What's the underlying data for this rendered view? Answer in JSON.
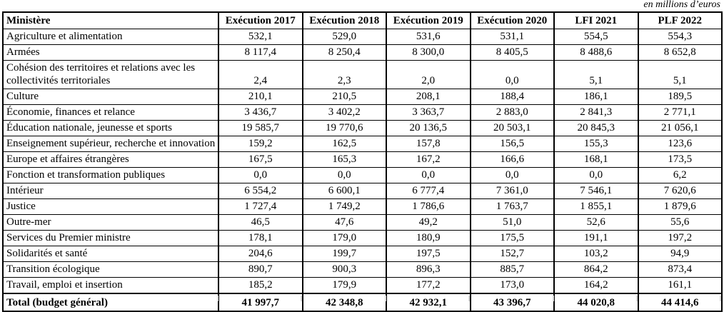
{
  "note": "en millions d’euros",
  "colors": {
    "table_border": "#000000",
    "gridline_artifact": "#d9d9d9",
    "background": "#ffffff",
    "text": "#000000"
  },
  "table": {
    "columns": [
      "Ministère",
      "Exécution 2017",
      "Exécution 2018",
      "Exécution 2019",
      "Exécution 2020",
      "LFI 2021",
      "PLF 2022"
    ],
    "rows": [
      {
        "label": "Agriculture et alimentation",
        "values": [
          "532,1",
          "529,0",
          "531,6",
          "531,1",
          "554,5",
          "554,3"
        ]
      },
      {
        "label": "Armées",
        "values": [
          "8 117,4",
          "8 250,4",
          "8 300,0",
          "8 405,5",
          "8 488,6",
          "8 652,8"
        ]
      },
      {
        "label": "Cohésion des territoires et relations avec les collectivités territoriales",
        "values": [
          "2,4",
          "2,3",
          "2,0",
          "0,0",
          "5,1",
          "5,1"
        ]
      },
      {
        "label": "Culture",
        "values": [
          "210,1",
          "210,5",
          "208,1",
          "188,4",
          "186,1",
          "189,5"
        ]
      },
      {
        "label": "Économie, finances et relance",
        "values": [
          "3 436,7",
          "3 402,2",
          "3 363,7",
          "2 883,0",
          "2 841,3",
          "2 771,1"
        ]
      },
      {
        "label": "Éducation nationale, jeunesse et sports",
        "values": [
          "19 585,7",
          "19 770,6",
          "20 136,5",
          "20 503,1",
          "20 845,3",
          "21 056,1"
        ]
      },
      {
        "label": "Enseignement supérieur, recherche et innovation",
        "values": [
          "159,2",
          "162,5",
          "157,8",
          "156,5",
          "155,3",
          "123,6"
        ]
      },
      {
        "label": "Europe et affaires étrangères",
        "values": [
          "167,5",
          "165,3",
          "167,2",
          "166,6",
          "168,1",
          "173,5"
        ]
      },
      {
        "label": "Fonction et transformation publiques",
        "values": [
          "0,0",
          "0,0",
          "0,0",
          "0,0",
          "0,0",
          "6,2"
        ]
      },
      {
        "label": "Intérieur",
        "values": [
          "6 554,2",
          "6 600,1",
          "6 777,4",
          "7 361,0",
          "7 546,1",
          "7 620,6"
        ]
      },
      {
        "label": "Justice",
        "values": [
          "1 727,4",
          "1 749,2",
          "1 786,6",
          "1 763,7",
          "1 855,1",
          "1 879,6"
        ]
      },
      {
        "label": "Outre-mer",
        "values": [
          "46,5",
          "47,6",
          "49,2",
          "51,0",
          "52,6",
          "55,6"
        ]
      },
      {
        "label": "Services du Premier ministre",
        "values": [
          "178,1",
          "179,0",
          "180,9",
          "175,5",
          "191,1",
          "197,2"
        ]
      },
      {
        "label": "Solidarités et santé",
        "values": [
          "204,6",
          "199,7",
          "197,5",
          "152,7",
          "103,2",
          "94,9"
        ]
      },
      {
        "label": "Transition écologique",
        "values": [
          "890,7",
          "900,3",
          "896,3",
          "885,7",
          "864,2",
          "873,4"
        ]
      },
      {
        "label": "Travail, emploi et insertion",
        "values": [
          "185,2",
          "179,9",
          "177,2",
          "173,0",
          "164,2",
          "161,1"
        ]
      }
    ],
    "total_row": {
      "label": "Total (budget général)",
      "values": [
        "41 997,7",
        "42 348,8",
        "42 932,1",
        "43 396,7",
        "44 020,8",
        "44 414,6"
      ]
    }
  }
}
